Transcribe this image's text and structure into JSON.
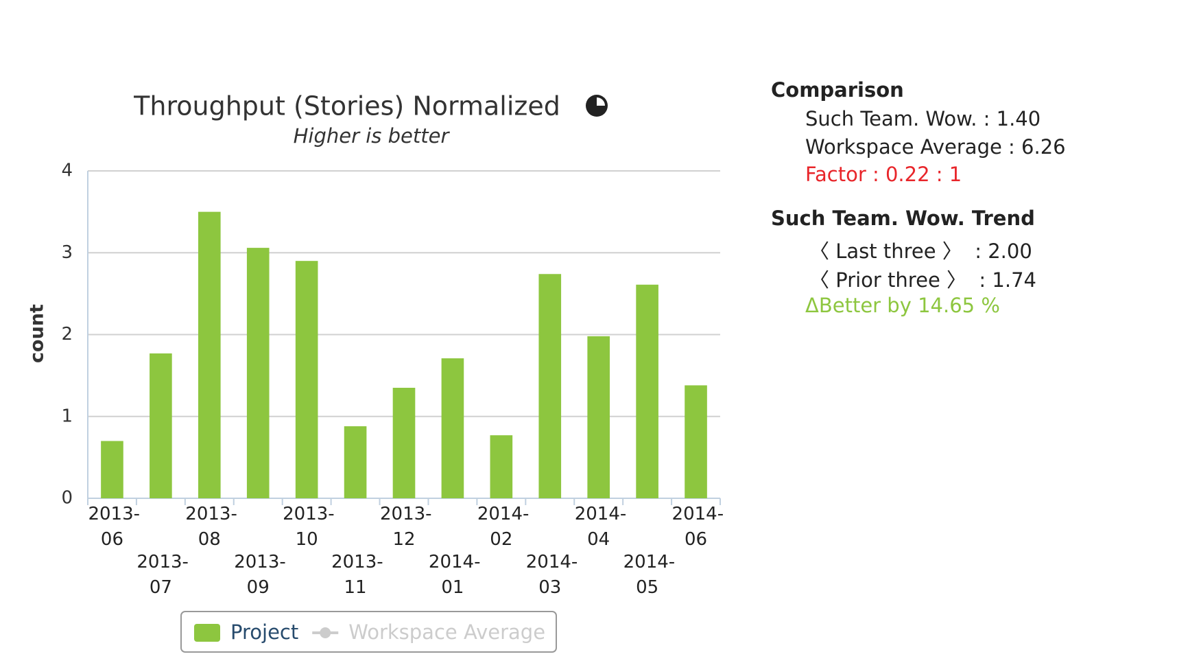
{
  "chart_data": {
    "type": "bar",
    "title": "Throughput (Stories) Normalized",
    "subtitle": "Higher is better",
    "y_label": "count",
    "categories": [
      "2013-06",
      "2013-07",
      "2013-08",
      "2013-09",
      "2013-10",
      "2013-11",
      "2013-12",
      "2014-01",
      "2014-02",
      "2014-03",
      "2014-04",
      "2014-05",
      "2014-06"
    ],
    "series": [
      {
        "name": "Project",
        "color": "#8dc63f",
        "values": [
          0.7,
          1.77,
          3.5,
          3.06,
          2.9,
          0.88,
          1.35,
          1.71,
          0.77,
          2.74,
          1.98,
          2.61,
          1.38
        ]
      },
      {
        "name": "Workspace Average",
        "color": "#cccccc",
        "visible": false,
        "values": [
          null,
          null,
          null,
          null,
          null,
          null,
          null,
          null,
          null,
          null,
          null,
          null,
          null
        ]
      }
    ],
    "ylim": [
      0,
      4
    ],
    "yticks": [
      0,
      1,
      2,
      3,
      4
    ],
    "grid": true,
    "legend": "bottom"
  },
  "comparison": {
    "title": "Comparison",
    "lines": [
      "Such Team. Wow. : 1.40",
      "Workspace Average : 6.26"
    ],
    "factor": "Factor : 0.22 : 1",
    "trend_title": "Such Team. Wow. Trend",
    "trend_lines": [
      "〈 Last three 〉  : 2.00",
      "〈 Prior three 〉  : 1.74"
    ],
    "delta": "ΔBetter by 14.65 %"
  }
}
